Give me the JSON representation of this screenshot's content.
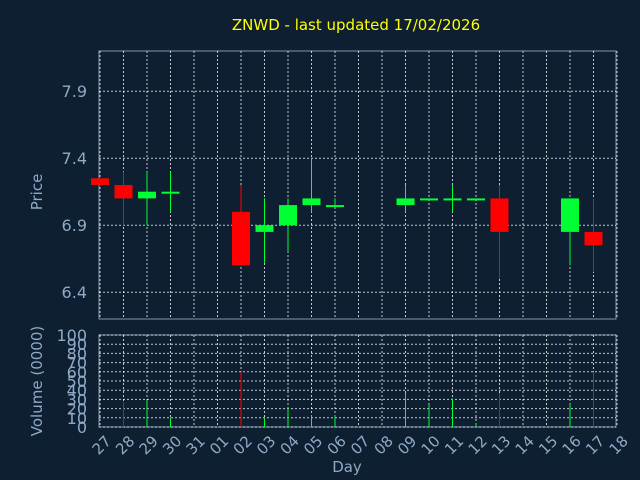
{
  "chart_data": {
    "type": "candlestick",
    "title": "ZNWD - last updated 17/02/2026",
    "xlabel": "Day",
    "x_tick_labels": [
      "27",
      "28",
      "29",
      "30",
      "31",
      "01",
      "02",
      "03",
      "04",
      "05",
      "06",
      "07",
      "08",
      "09",
      "10",
      "11",
      "12",
      "13",
      "14",
      "15",
      "16",
      "17",
      "18"
    ],
    "price_panel": {
      "ylabel": "Price",
      "ylim": [
        6.2,
        8.2
      ],
      "y_ticks": [
        "6.4",
        "6.9",
        "7.4",
        "7.9"
      ],
      "grid": true,
      "up_color": "#00ff33",
      "down_color": "#ff0000",
      "candles": [
        {
          "day": "27",
          "open": 7.25,
          "high": 7.25,
          "low": 7.2,
          "close": 7.2
        },
        {
          "day": "28",
          "open": 7.2,
          "high": 7.3,
          "low": 6.9,
          "close": 7.1
        },
        {
          "day": "29",
          "open": 7.1,
          "high": 7.3,
          "low": 6.9,
          "close": 7.15
        },
        {
          "day": "30",
          "open": 7.14,
          "high": 7.3,
          "low": 7.0,
          "close": 7.15
        },
        {
          "day": "02",
          "open": 7.0,
          "high": 7.2,
          "low": 6.6,
          "close": 6.6
        },
        {
          "day": "03",
          "open": 6.85,
          "high": 7.1,
          "low": 6.62,
          "close": 6.9
        },
        {
          "day": "04",
          "open": 6.9,
          "high": 7.1,
          "low": 6.7,
          "close": 7.05
        },
        {
          "day": "05",
          "open": 7.05,
          "high": 7.4,
          "low": 7.0,
          "close": 7.1
        },
        {
          "day": "06",
          "open": 7.04,
          "high": 7.1,
          "low": 7.04,
          "close": 7.05
        },
        {
          "day": "09",
          "open": 7.05,
          "high": 7.2,
          "low": 7.0,
          "close": 7.1
        },
        {
          "day": "10",
          "open": 7.09,
          "high": 7.1,
          "low": 7.09,
          "close": 7.1
        },
        {
          "day": "11",
          "open": 7.09,
          "high": 7.2,
          "low": 7.0,
          "close": 7.1
        },
        {
          "day": "12",
          "open": 7.09,
          "high": 7.1,
          "low": 7.09,
          "close": 7.1
        },
        {
          "day": "13",
          "open": 7.1,
          "high": 7.2,
          "low": 6.5,
          "close": 6.85
        },
        {
          "day": "16",
          "open": 6.85,
          "high": 7.1,
          "low": 6.6,
          "close": 7.1
        },
        {
          "day": "17",
          "open": 6.85,
          "high": 7.1,
          "low": 6.55,
          "close": 6.75
        }
      ]
    },
    "volume_panel": {
      "ylabel": "Volume (0000)",
      "ylim": [
        0,
        100
      ],
      "y_ticks": [
        "0",
        "10",
        "20",
        "30",
        "40",
        "50",
        "60",
        "70",
        "80",
        "90",
        "100"
      ],
      "bars": [
        {
          "day": "27",
          "value": 0,
          "up": false
        },
        {
          "day": "28",
          "value": 27,
          "up": false
        },
        {
          "day": "29",
          "value": 29,
          "up": true
        },
        {
          "day": "30",
          "value": 10,
          "up": true
        },
        {
          "day": "02",
          "value": 60,
          "up": false
        },
        {
          "day": "03",
          "value": 10,
          "up": true
        },
        {
          "day": "04",
          "value": 22,
          "up": true
        },
        {
          "day": "05",
          "value": 13,
          "up": true
        },
        {
          "day": "06",
          "value": 13,
          "up": true
        },
        {
          "day": "09",
          "value": 37,
          "up": true
        },
        {
          "day": "10",
          "value": 24,
          "up": true
        },
        {
          "day": "11",
          "value": 31,
          "up": true
        },
        {
          "day": "12",
          "value": 4,
          "up": true
        },
        {
          "day": "13",
          "value": 37,
          "up": false
        },
        {
          "day": "16",
          "value": 25,
          "up": true
        },
        {
          "day": "17",
          "value": 60,
          "up": false
        }
      ]
    }
  }
}
